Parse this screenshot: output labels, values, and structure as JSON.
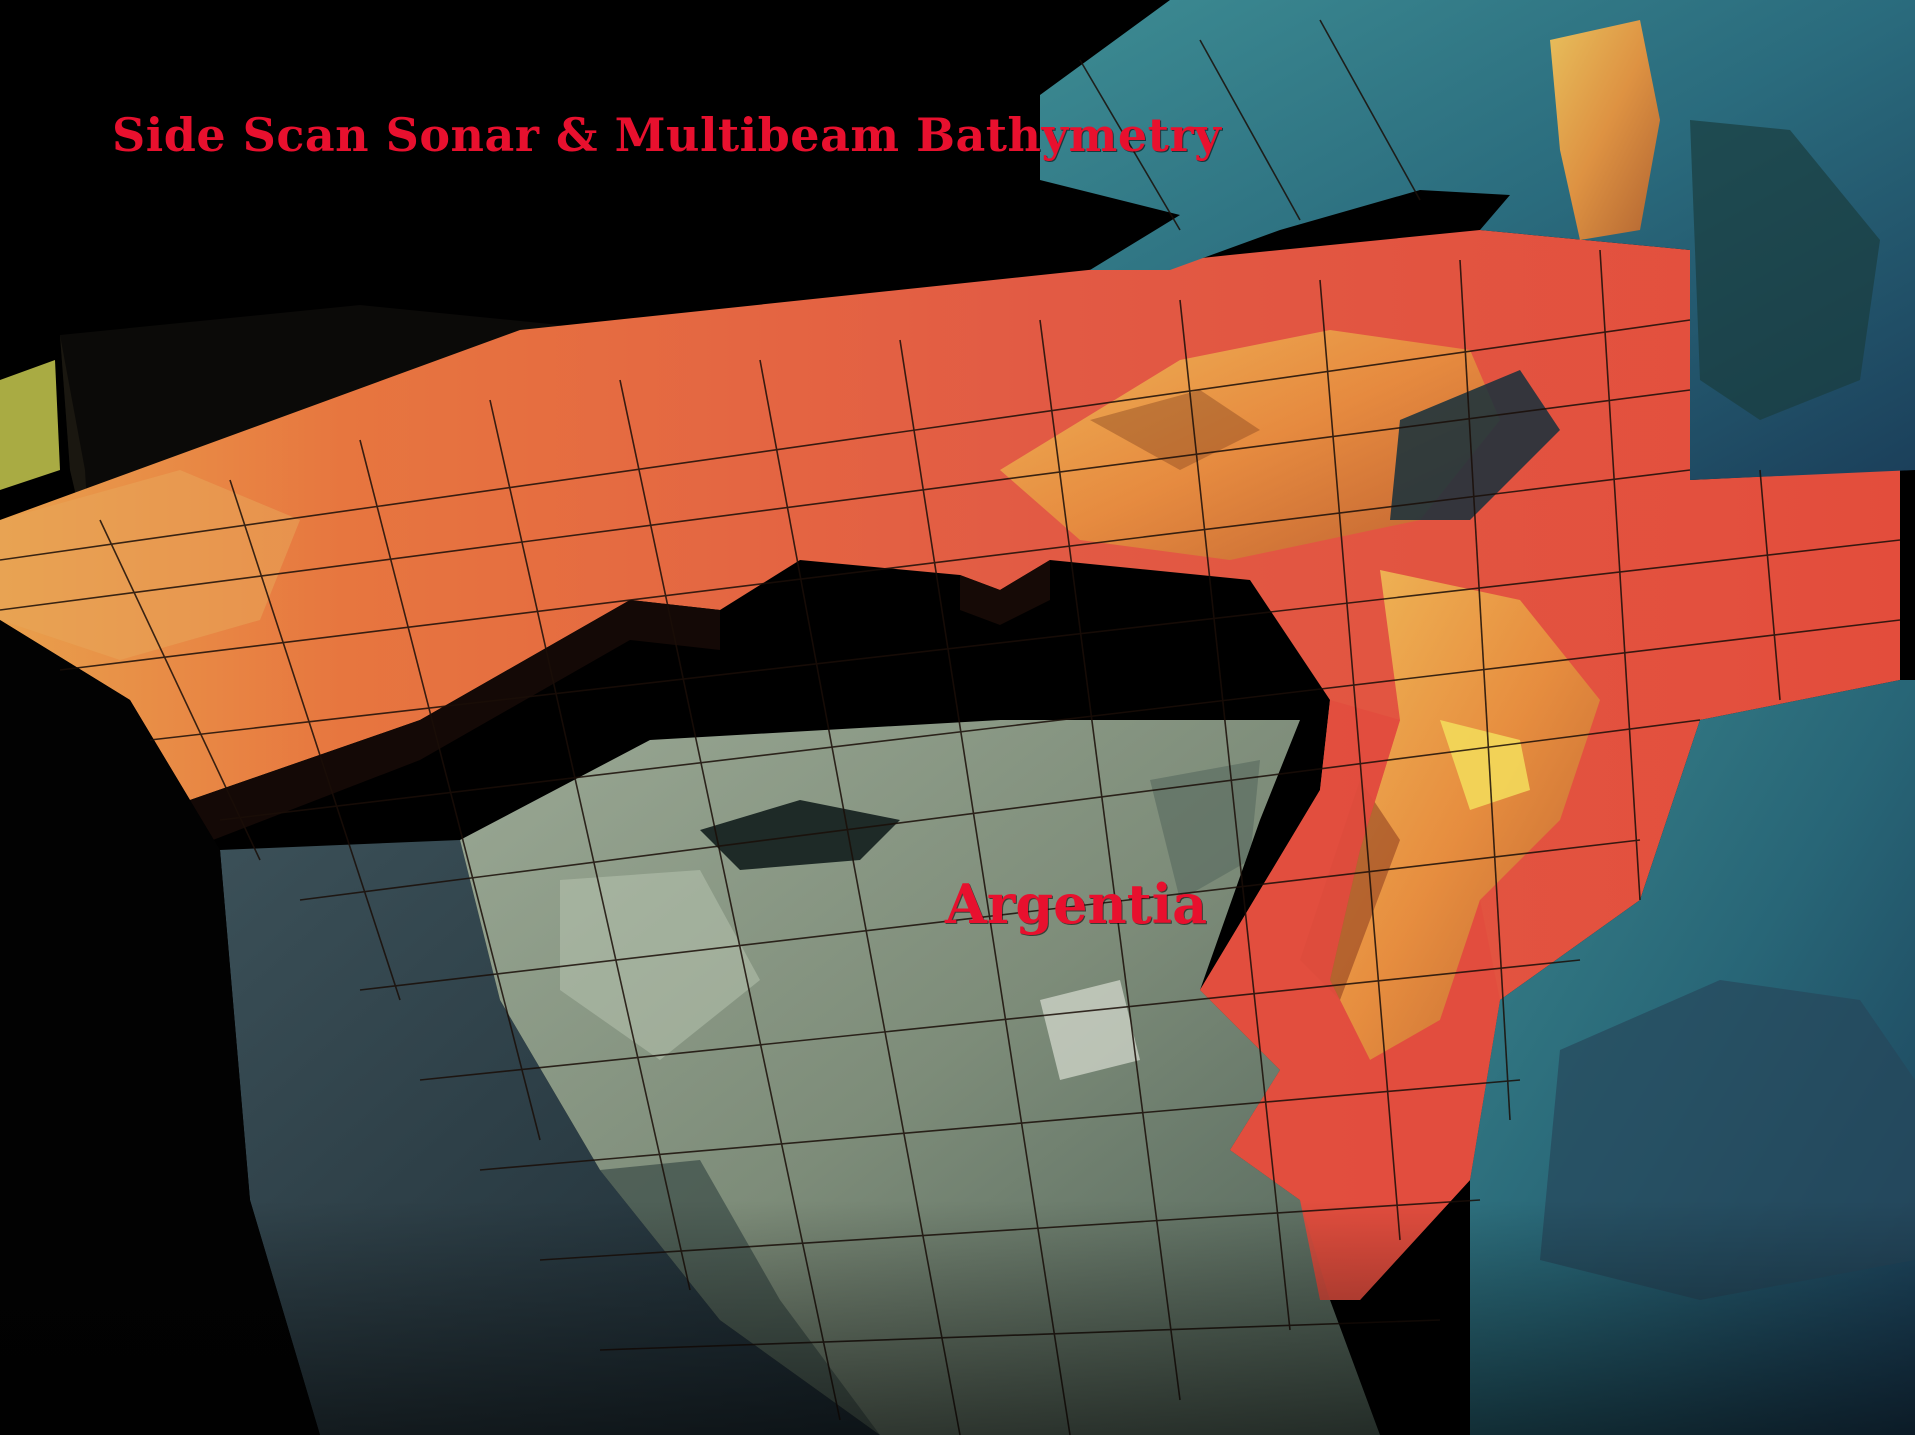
{
  "title": "Side Scan Sonar & Multibeam Bathymetry",
  "place_label": "Argentia",
  "colors": {
    "background": "#000000",
    "label": "#e8102e",
    "bathymetry_red": "#e0503e",
    "bathymetry_orange": "#e9923e",
    "bathymetry_yellow": "#f2cf4a",
    "land_teal": "#2f7a86",
    "land_blue": "#22506e",
    "island_gray": "#8fa08a",
    "island_dark": "#4b5e53",
    "grid_line": "#1a0e08"
  }
}
